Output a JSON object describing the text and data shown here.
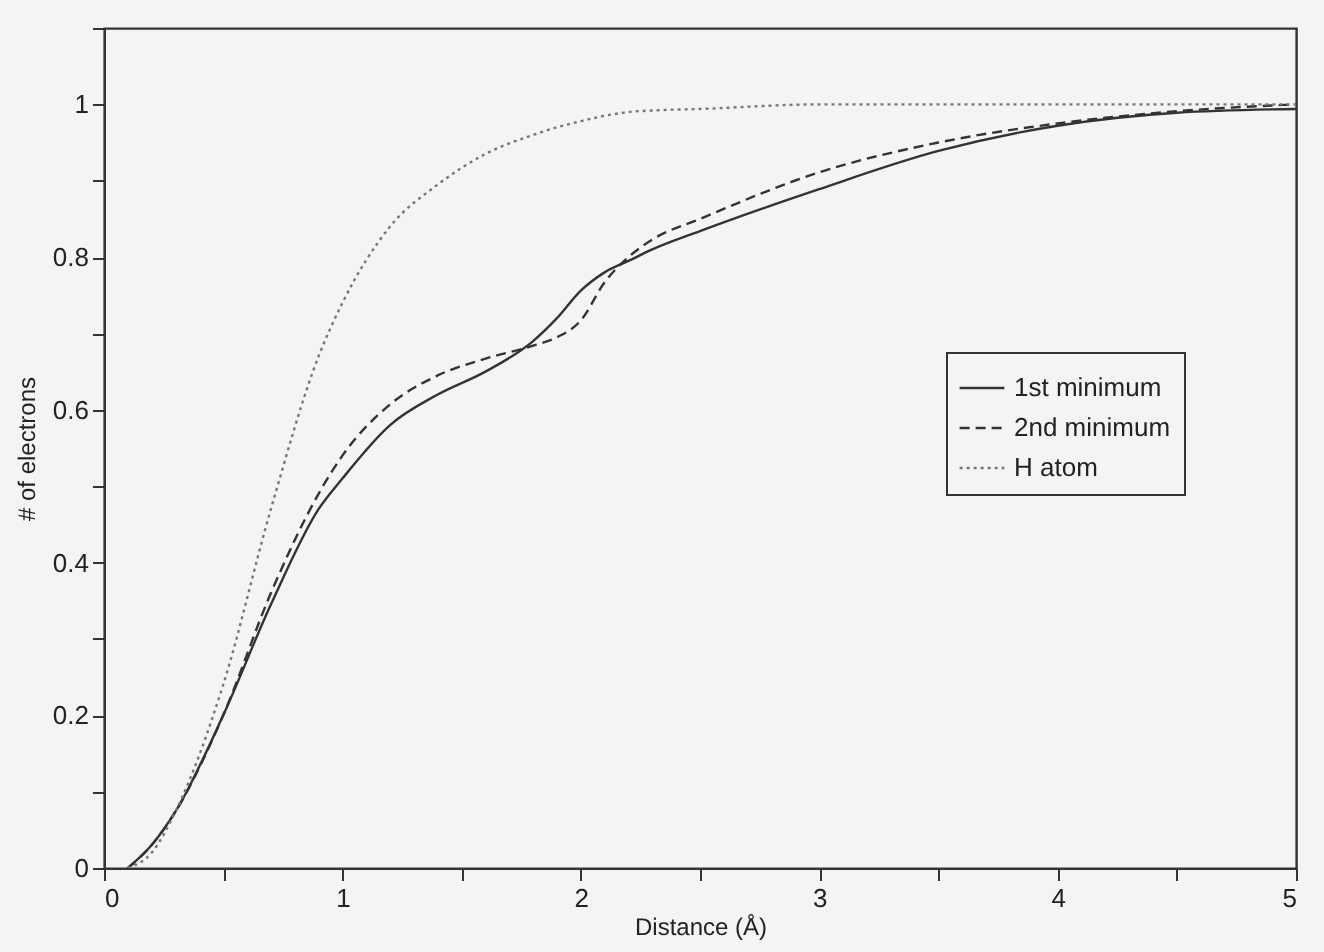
{
  "chart_data": {
    "type": "line",
    "xlabel": "Distance (Å)",
    "ylabel": "# of electrons",
    "x": [
      0.1,
      0.2,
      0.3,
      0.5,
      0.7,
      0.9,
      1.0,
      1.2,
      1.4,
      1.6,
      1.8,
      1.9,
      2.0,
      2.1,
      2.2,
      2.3,
      2.5,
      3.0,
      3.5,
      4.0,
      4.5,
      5.0
    ],
    "series": [
      {
        "name": "1st minimum",
        "color": "#333333",
        "line_style": "solid",
        "values": [
          0,
          0.03,
          0.074,
          0.2,
          0.345,
          0.47,
          0.51,
          0.58,
          0.62,
          0.65,
          0.69,
          0.72,
          0.756,
          0.78,
          0.795,
          0.81,
          0.834,
          0.889,
          0.939,
          0.972,
          0.989,
          0.994
        ]
      },
      {
        "name": "2nd minimum",
        "color": "#333333",
        "line_style": "dashed",
        "values": [
          0,
          0.03,
          0.074,
          0.2,
          0.36,
          0.49,
          0.54,
          0.607,
          0.645,
          0.667,
          0.684,
          0.695,
          0.717,
          0.767,
          0.8,
          0.823,
          0.85,
          0.911,
          0.95,
          0.975,
          0.991,
          1.0
        ]
      },
      {
        "name": "H atom",
        "color": "#777777",
        "line_style": "dotted",
        "values": [
          0,
          0.02,
          0.074,
          0.24,
          0.47,
          0.67,
          0.74,
          0.84,
          0.895,
          0.935,
          0.96,
          0.97,
          0.978,
          0.985,
          0.99,
          0.992,
          0.994,
          1.0,
          1.0,
          1.0,
          1.0,
          1.0
        ]
      }
    ],
    "xlim": [
      0,
      5
    ],
    "ylim": [
      0,
      1.1
    ],
    "xticks": [
      0,
      {
        "value": 0.5,
        "label": null
      },
      1,
      {
        "value": 1.5,
        "label": null
      },
      2,
      {
        "value": 2.5,
        "label": null
      },
      3,
      {
        "value": 3.5,
        "label": null
      },
      4,
      {
        "value": 4.5,
        "label": null
      },
      5
    ],
    "yticks": [
      0,
      {
        "value": 0.1,
        "label": null
      },
      0.2,
      {
        "value": 0.3,
        "label": null
      },
      0.4,
      {
        "value": 0.5,
        "label": null
      },
      0.6,
      {
        "value": 0.7,
        "label": null
      },
      0.8,
      {
        "value": 0.9,
        "label": null
      },
      1,
      {
        "value": 1.1,
        "label": null
      }
    ],
    "grid": false,
    "legend": "right",
    "marker": "none"
  }
}
